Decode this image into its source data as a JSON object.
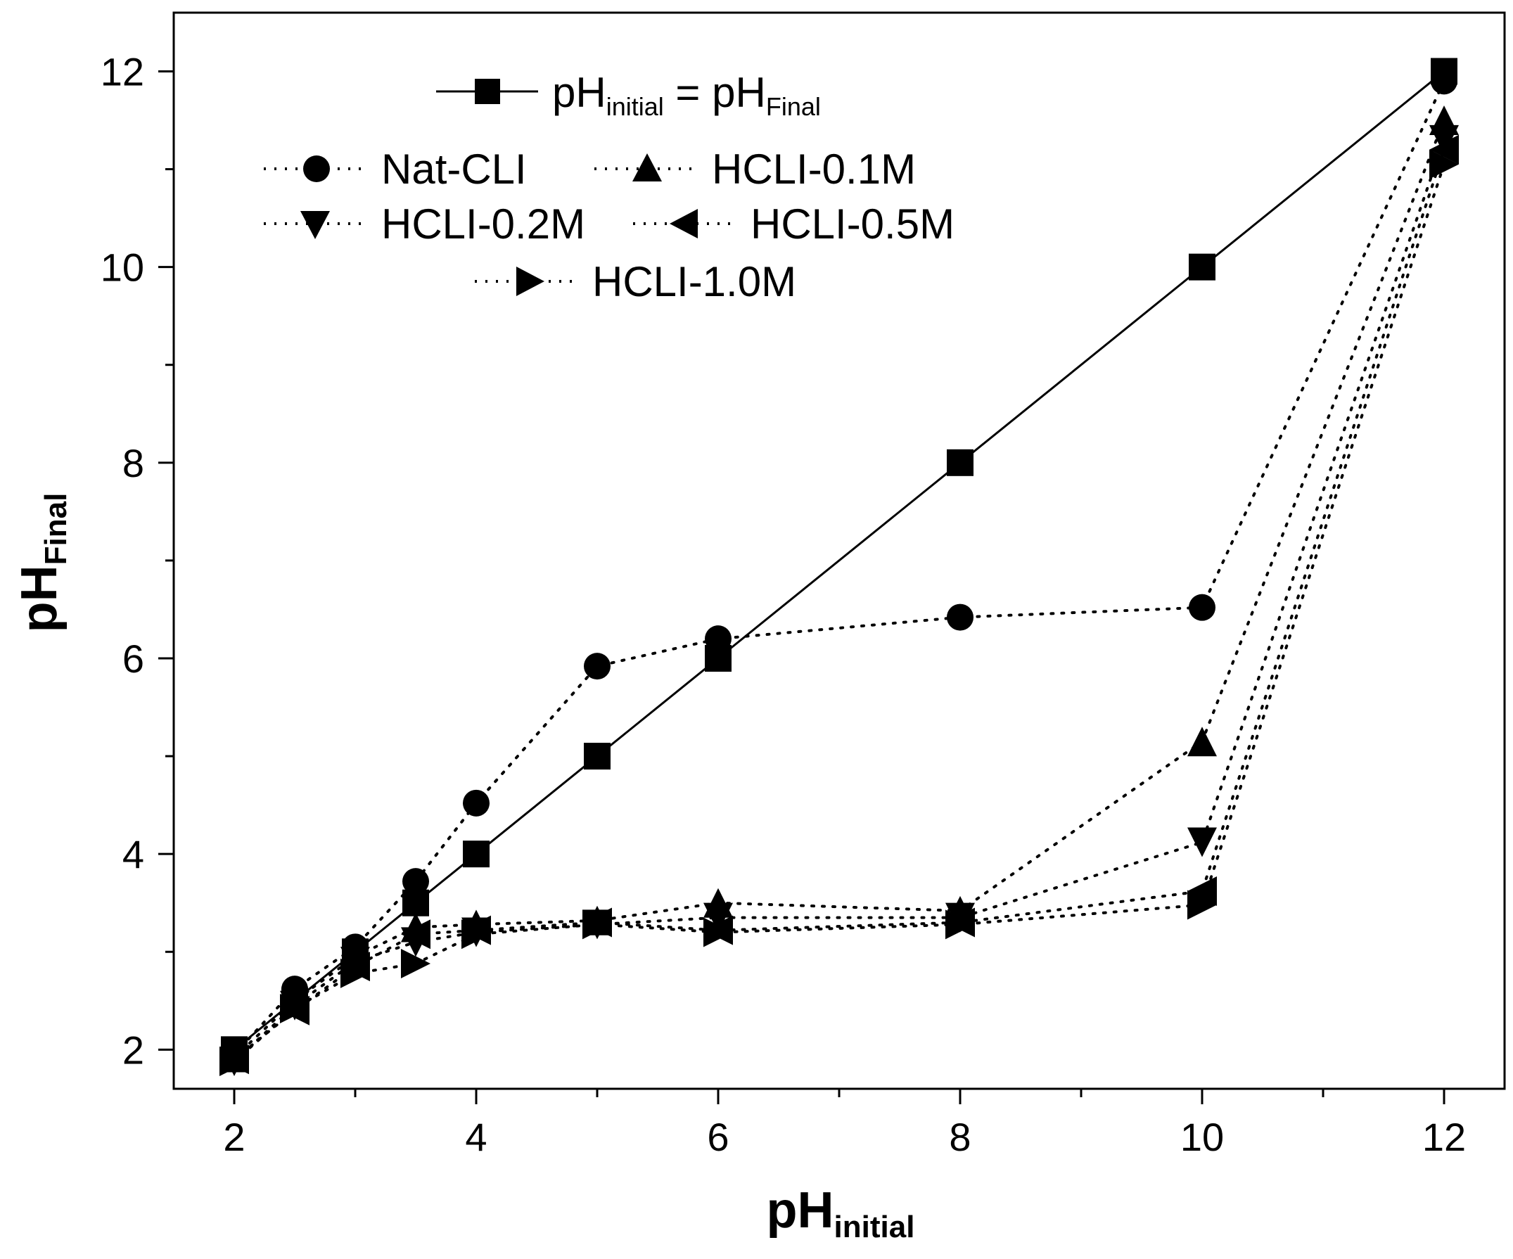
{
  "chart_data": {
    "type": "line",
    "title": "",
    "xlabel": {
      "base": "pH",
      "sub": "initial"
    },
    "ylabel": {
      "base": "pH",
      "sub": "Final"
    },
    "xlim": [
      1.5,
      12.5
    ],
    "ylim": [
      1.6,
      12.6
    ],
    "x_ticks": [
      2,
      4,
      6,
      8,
      10,
      12
    ],
    "y_ticks": [
      2,
      4,
      6,
      8,
      10,
      12
    ],
    "x_minor_ticks": [
      3,
      5,
      7,
      9,
      11
    ],
    "y_minor_ticks": [
      3,
      5,
      7,
      9,
      11
    ],
    "series": [
      {
        "name": "pH = pH",
        "legend_main": "pH",
        "legend_sub1": "initial",
        "legend_mid": " = pH",
        "legend_sub2": "Final",
        "marker": "square",
        "line": "solid",
        "x": [
          2,
          2.5,
          3,
          3.5,
          4,
          5,
          6,
          8,
          10,
          12
        ],
        "y": [
          2,
          2.5,
          3,
          3.5,
          4,
          5,
          6,
          8,
          10,
          12
        ]
      },
      {
        "name": "Nat-CLI",
        "marker": "circle",
        "line": "dotted",
        "x": [
          2,
          2.5,
          3,
          3.5,
          4,
          5,
          6,
          8,
          10,
          12
        ],
        "y": [
          1.95,
          2.62,
          3.05,
          3.72,
          4.52,
          5.92,
          6.2,
          6.42,
          6.52,
          11.9
        ]
      },
      {
        "name": "HCLI-0.1M",
        "marker": "triangle-up",
        "line": "dotted",
        "x": [
          2,
          2.5,
          3,
          3.5,
          4,
          5,
          6,
          8,
          10,
          12
        ],
        "y": [
          1.92,
          2.5,
          2.95,
          3.25,
          3.28,
          3.32,
          3.5,
          3.42,
          5.15,
          11.5
        ]
      },
      {
        "name": "HCLI-0.2M",
        "marker": "triangle-down",
        "line": "dotted",
        "x": [
          2,
          2.5,
          3,
          3.5,
          4,
          5,
          6,
          8,
          10,
          12
        ],
        "y": [
          1.88,
          2.45,
          2.9,
          3.1,
          3.2,
          3.28,
          3.35,
          3.35,
          4.12,
          11.3
        ]
      },
      {
        "name": "HCLI-0.5M",
        "marker": "triangle-left",
        "line": "dotted",
        "x": [
          2,
          2.5,
          3,
          3.5,
          4,
          5,
          6,
          8,
          10,
          12
        ],
        "y": [
          1.9,
          2.4,
          2.85,
          3.18,
          3.22,
          3.3,
          3.22,
          3.3,
          3.62,
          11.2
        ]
      },
      {
        "name": "HCLI-1.0M",
        "marker": "triangle-right",
        "line": "dotted",
        "x": [
          2,
          2.5,
          3,
          3.5,
          4,
          5,
          6,
          8,
          10,
          12
        ],
        "y": [
          1.88,
          2.42,
          2.78,
          2.88,
          3.18,
          3.28,
          3.2,
          3.28,
          3.48,
          11.05
        ]
      }
    ]
  }
}
